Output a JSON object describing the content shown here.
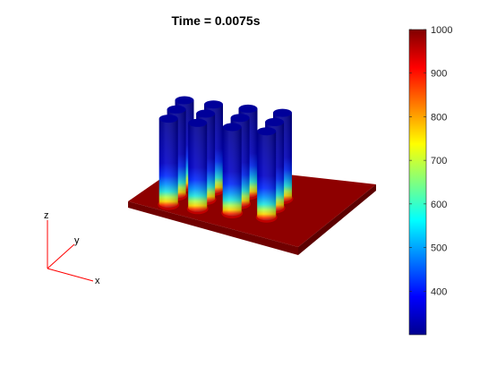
{
  "chart_data": {
    "type": "heatmap",
    "title": "Time = 0.0075s",
    "colormap": "jet",
    "colorbar": {
      "range": [
        300,
        1000
      ],
      "ticks": [
        400,
        500,
        600,
        700,
        800,
        900,
        1000
      ],
      "tick_labels": [
        "400",
        "500",
        "600",
        "700",
        "800",
        "900",
        "1000"
      ]
    },
    "base_plate_temperature": 1000,
    "pin_fin_grid": [
      4,
      3
    ],
    "pin_fin_count": 12,
    "pin_top_temperature": 300,
    "triad_labels": {
      "x": "x",
      "y": "y",
      "z": "z"
    }
  }
}
